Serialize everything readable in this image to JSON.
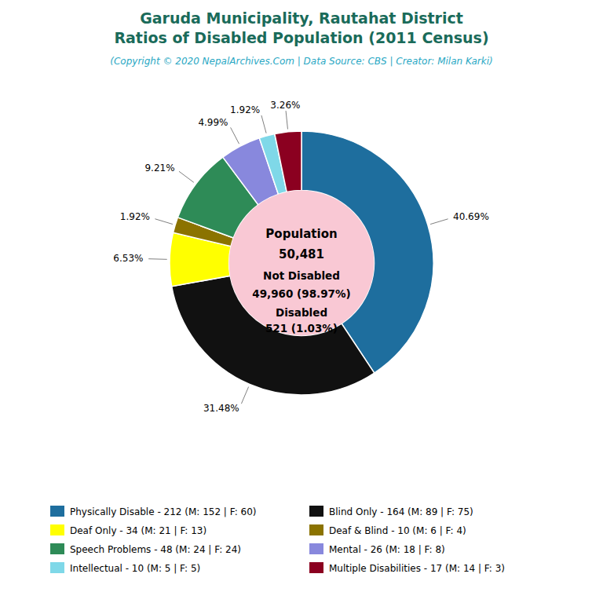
{
  "chart_data": {
    "type": "pie",
    "title": [
      "Garuda Municipality, Rautahat District",
      "Ratios of Disabled Population (2011 Census)"
    ],
    "subtitle": "(Copyright © 2020 NepalArchives.Com | Data Source: CBS | Creator: Milan Karki)",
    "categories": [
      "Physically Disable - 212 (M: 152 | F: 60)",
      "Blind Only - 164 (M: 89 | F: 75)",
      "Deaf Only - 34 (M: 21 | F: 13)",
      "Deaf & Blind - 10 (M: 6 | F: 4)",
      "Speech Problems - 48 (M: 24 | F: 24)",
      "Mental - 26 (M: 18 | F: 8)",
      "Intellectual - 10 (M: 5 | F: 5)",
      "Multiple Disabilities - 17 (M: 14 | F: 3)"
    ],
    "values": [
      40.69,
      31.48,
      6.53,
      1.92,
      9.21,
      4.99,
      1.92,
      3.26
    ],
    "value_labels": [
      "40.69%",
      "31.48%",
      "6.53%",
      "1.92%",
      "9.21%",
      "4.99%",
      "1.92%",
      "3.26%"
    ],
    "data_labels": true,
    "colors": [
      "#1e6e9e",
      "#111111",
      "#ffff00",
      "#8b7300",
      "#2e8b57",
      "#8888dd",
      "#7fd8e8",
      "#8b0020"
    ],
    "annotations": [
      "Population",
      "50,481",
      "Not Disabled",
      "49,960 (98.97%)",
      "Disabled",
      "521 (1.03%)"
    ],
    "legend": "bottom"
  }
}
